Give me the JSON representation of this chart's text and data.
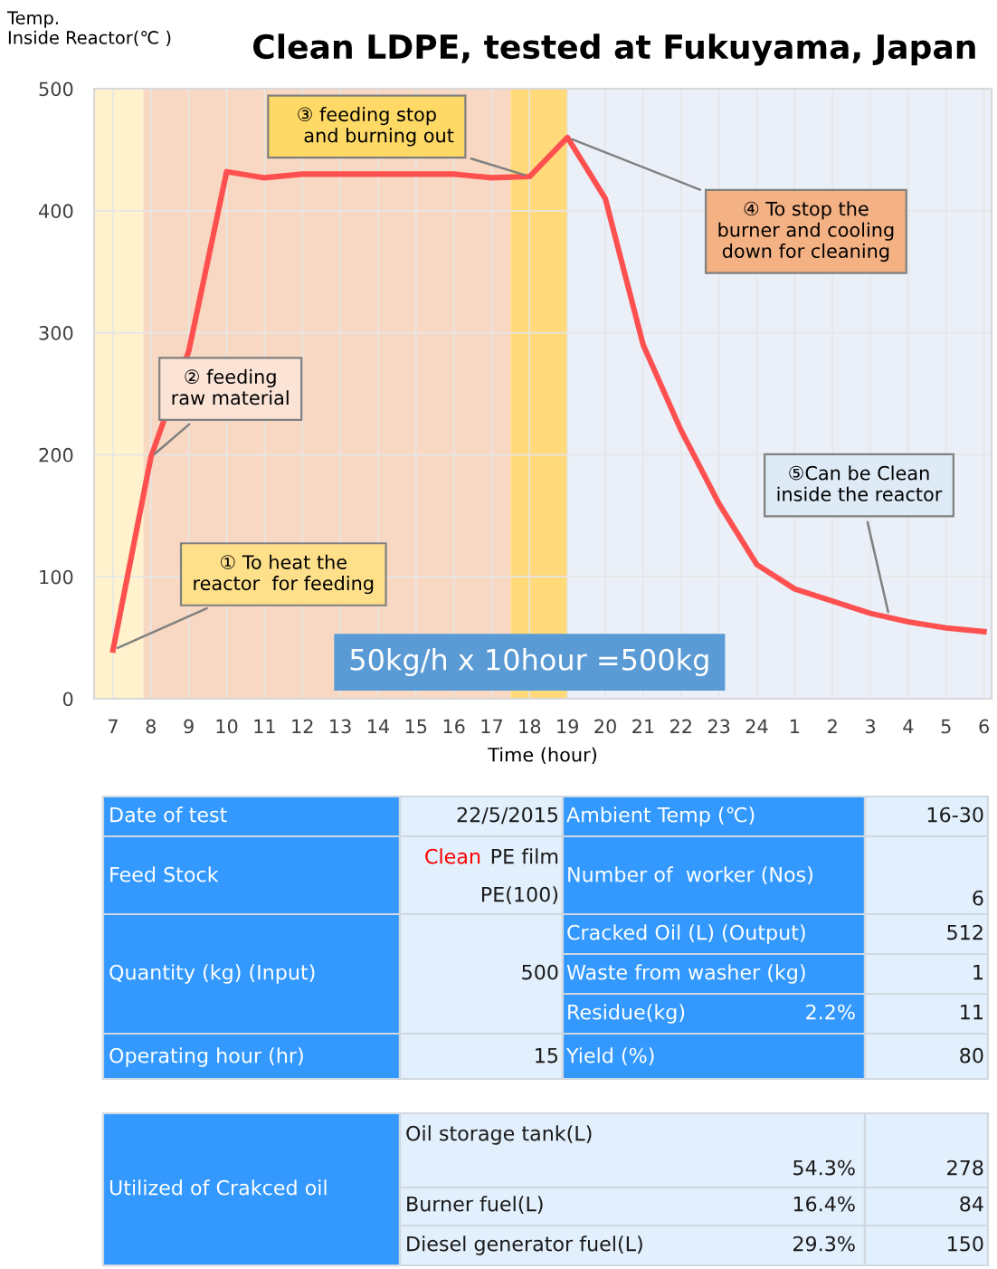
{
  "chart_data": [
    {
      "type": "line",
      "title": "Clean LDPE, tested at Fukuyama, Japan",
      "xlabel": "Time (hour)",
      "ylabel": "Temp.\nInside Reactor(℃ )",
      "x": [
        "2015-05-22T07:00",
        "2015-05-22T08:00",
        "2015-05-22T09:00",
        "2015-05-22T10:00",
        "2015-05-22T11:00",
        "2015-05-22T12:00",
        "2015-05-22T13:00",
        "2015-05-22T14:00",
        "2015-05-22T15:00",
        "2015-05-22T16:00",
        "2015-05-22T17:00",
        "2015-05-22T18:00",
        "2015-05-22T19:00",
        "2015-05-22T20:00",
        "2015-05-22T21:00",
        "2015-05-22T22:00",
        "2015-05-22T23:00",
        "2015-05-23T00:00",
        "2015-05-23T01:00",
        "2015-05-23T02:00",
        "2015-05-23T03:00",
        "2015-05-23T04:00",
        "2015-05-23T05:00",
        "2015-05-23T06:00"
      ],
      "series": [
        {
          "color": "#ff5050",
          "values": [
            40,
            198,
            285,
            432,
            427,
            430,
            430,
            430,
            430,
            430,
            427,
            428,
            460,
            410,
            290,
            220,
            160,
            110,
            90,
            80,
            70,
            63,
            58,
            55
          ]
        }
      ],
      "xlim": [
        "2015-05-22T06:30",
        "2015-05-23T06:12"
      ],
      "xticks": [
        {
          "value": "2015-05-22T07:00",
          "label": "7"
        },
        {
          "value": "2015-05-22T08:00",
          "label": "8"
        },
        {
          "value": "2015-05-22T09:00",
          "label": "9"
        },
        {
          "value": "2015-05-22T10:00",
          "label": "10"
        },
        {
          "value": "2015-05-22T11:00",
          "label": "11"
        },
        {
          "value": "2015-05-22T12:00",
          "label": "12"
        },
        {
          "value": "2015-05-22T13:00",
          "label": "13"
        },
        {
          "value": "2015-05-22T14:00",
          "label": "14"
        },
        {
          "value": "2015-05-22T15:00",
          "label": "15"
        },
        {
          "value": "2015-05-22T16:00",
          "label": "16"
        },
        {
          "value": "2015-05-22T17:00",
          "label": "17"
        },
        {
          "value": "2015-05-22T18:00",
          "label": "18"
        },
        {
          "value": "2015-05-22T19:00",
          "label": "19"
        },
        {
          "value": "2015-05-22T20:00",
          "label": "20"
        },
        {
          "value": "2015-05-22T21:00",
          "label": "21"
        },
        {
          "value": "2015-05-22T22:00",
          "label": "22"
        },
        {
          "value": "2015-05-22T23:00",
          "label": "23"
        },
        {
          "value": "2015-05-23T00:00",
          "label": "24"
        },
        {
          "value": "2015-05-23T01:00",
          "label": "1"
        },
        {
          "value": "2015-05-23T02:00",
          "label": "2"
        },
        {
          "value": "2015-05-23T03:00",
          "label": "3"
        },
        {
          "value": "2015-05-23T04:00",
          "label": "4"
        },
        {
          "value": "2015-05-23T05:00",
          "label": "5"
        },
        {
          "value": "2015-05-23T06:00",
          "label": "6"
        }
      ],
      "ylim": [
        0,
        500
      ],
      "yticks": [
        0,
        100,
        200,
        300,
        400,
        500
      ],
      "grid": true,
      "line_style": "solid",
      "bands": [
        {
          "axis": "x",
          "from": "2015-05-22T06:30",
          "to": "2015-05-22T07:48",
          "color": "#fff2cc"
        },
        {
          "axis": "x",
          "from": "2015-05-22T07:48",
          "to": "2015-05-22T17:30",
          "color": "#f8d8c2"
        },
        {
          "axis": "x",
          "from": "2015-05-22T17:30",
          "to": "2015-05-22T19:00",
          "color": "#ffd97a"
        },
        {
          "axis": "x",
          "from": "2015-05-22T19:00",
          "to": "2015-05-23T06:12",
          "color": "#eaeff8"
        }
      ],
      "annotations": [
        {
          "text": "① To heat the\nreactor  for feeding",
          "x": "2015-05-22T07:00",
          "y": 40
        },
        {
          "text": "② feeding\nraw material",
          "x": "2015-05-22T08:00",
          "y": 198
        },
        {
          "text": "③ feeding stop\n    and burning out",
          "x": "2015-05-22T18:00",
          "y": 428
        },
        {
          "text": "④ To stop the\nburner and cooling\ndown for cleaning",
          "x": "2015-05-22T19:00",
          "y": 460
        },
        {
          "text": "⑤Can be Clean\ninside the reactor",
          "x": "2015-05-23T03:30",
          "y": 67
        },
        "50kg/h x 10hour =500kg"
      ]
    },
    {
      "type": "other",
      "annotations": [
        "Date of test",
        "22/5/2015",
        "Ambient Temp (℃)",
        "16-30",
        "Feed Stock",
        "Clean",
        "PE film",
        "PE(100)",
        "Number of  worker (Nos)",
        "6",
        "Quantity (kg) (Input)",
        "500",
        "Cracked Oil (L) (Output)",
        "512",
        "Waste from washer (kg)",
        "1",
        "Residue(kg)",
        "2.2%",
        "11",
        "Operating hour (hr)",
        "15",
        "Yield (%)",
        "80",
        "Utilized of Crakced oil",
        "Oil storage tank(L)",
        "54.3%",
        "278",
        "Burner fuel(L)",
        "16.4%",
        "84",
        "Diesel generator fuel(L)",
        "29.3%",
        "150"
      ]
    }
  ]
}
